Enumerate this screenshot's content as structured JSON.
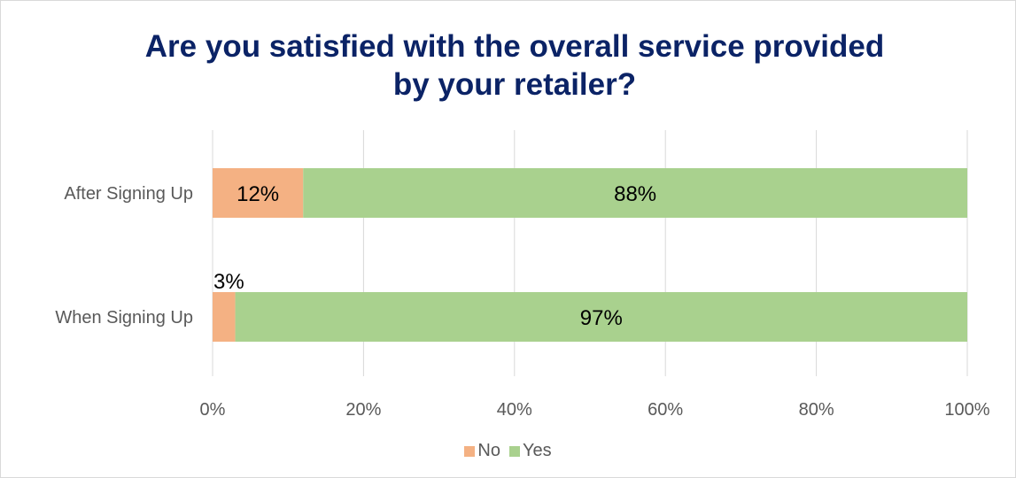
{
  "chart_data": {
    "type": "bar",
    "orientation": "horizontal",
    "stacked": "100%",
    "title_lines": [
      "Are you satisfied with the overall service provided",
      "by your retailer?"
    ],
    "categories": [
      "After Signing Up",
      "When Signing Up"
    ],
    "series": [
      {
        "name": "No",
        "values": [
          12,
          3
        ],
        "labels": [
          "12%",
          "3%"
        ],
        "color": "#f4b183"
      },
      {
        "name": "Yes",
        "values": [
          88,
          97
        ],
        "labels": [
          "88%",
          "97%"
        ],
        "color": "#a9d18e"
      }
    ],
    "xlim": [
      0,
      100
    ],
    "xticks": [
      "0%",
      "20%",
      "40%",
      "60%",
      "80%",
      "100%"
    ],
    "grid": "vertical",
    "legend": "bottom-center"
  }
}
